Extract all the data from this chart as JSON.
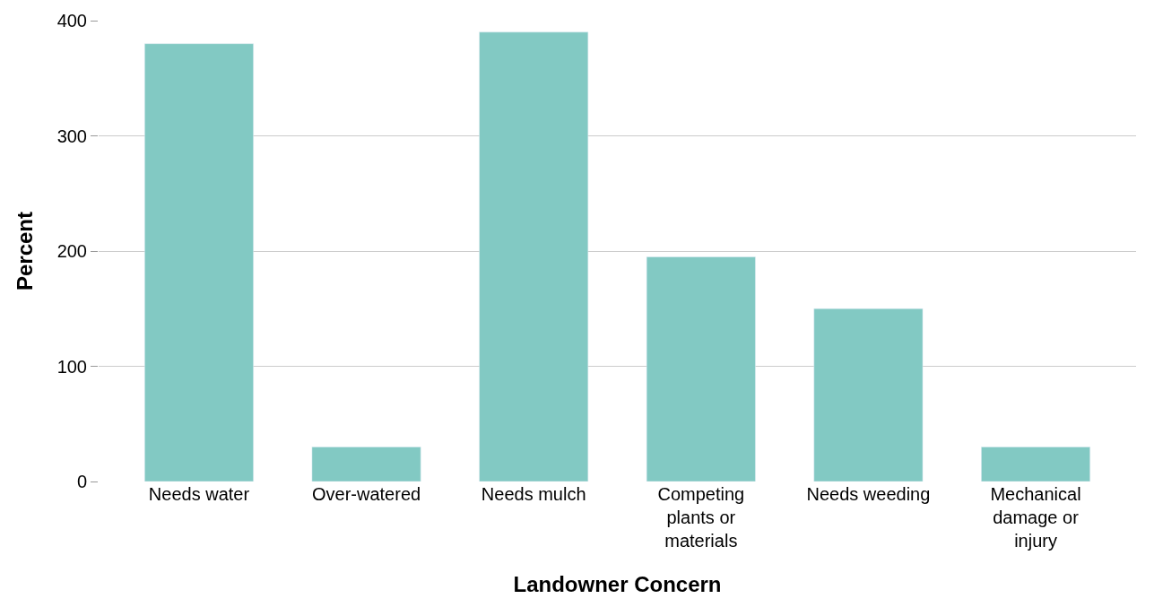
{
  "chart_data": {
    "type": "bar",
    "xlabel": "Landowner Concern",
    "ylabel": "Percent",
    "categories": [
      "Needs water",
      "Over-watered",
      "Needs mulch",
      "Competing plants or materials",
      "Needs weeding",
      "Mechanical damage or injury"
    ],
    "values": [
      380,
      30,
      390,
      195,
      150,
      30
    ],
    "color": "#82c9c3",
    "ylim": [
      0,
      400
    ],
    "yticks": [
      0,
      100,
      200,
      300,
      400
    ],
    "grid": "y"
  }
}
